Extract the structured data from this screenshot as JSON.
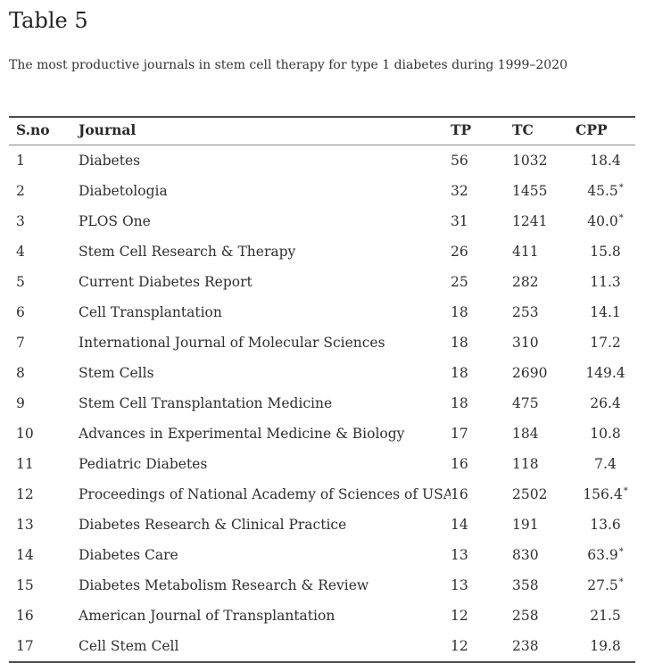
{
  "page": {
    "title": "Table 5",
    "caption": "The most productive journals in stem cell therapy for type 1 diabetes during 1999–2020"
  },
  "colors": {
    "text": "#2f2f2f",
    "rule_dark": "#4a4a4a",
    "rule_light": "#8a8a8a",
    "background": "#ffffff"
  },
  "table": {
    "columns": [
      "S.no",
      "Journal",
      "TP",
      "TC",
      "CPP"
    ],
    "rows": [
      {
        "sno": "1",
        "journal": "Diabetes",
        "tp": "56",
        "tc": "1032",
        "cpp": "18.4",
        "star": false
      },
      {
        "sno": "2",
        "journal": "Diabetologia",
        "tp": "32",
        "tc": "1455",
        "cpp": "45.5",
        "star": true
      },
      {
        "sno": "3",
        "journal": "PLOS One",
        "tp": "31",
        "tc": "1241",
        "cpp": "40.0",
        "star": true
      },
      {
        "sno": "4",
        "journal": "Stem Cell Research & Therapy",
        "tp": "26",
        "tc": "411",
        "cpp": "15.8",
        "star": false
      },
      {
        "sno": "5",
        "journal": "Current Diabetes Report",
        "tp": "25",
        "tc": "282",
        "cpp": "11.3",
        "star": false
      },
      {
        "sno": "6",
        "journal": "Cell Transplantation",
        "tp": "18",
        "tc": "253",
        "cpp": "14.1",
        "star": false
      },
      {
        "sno": "7",
        "journal": "International Journal of Molecular Sciences",
        "tp": "18",
        "tc": "310",
        "cpp": "17.2",
        "star": false
      },
      {
        "sno": "8",
        "journal": "Stem Cells",
        "tp": "18",
        "tc": "2690",
        "cpp": "149.4",
        "star": false
      },
      {
        "sno": "9",
        "journal": "Stem Cell Transplantation Medicine",
        "tp": "18",
        "tc": "475",
        "cpp": "26.4",
        "star": false
      },
      {
        "sno": "10",
        "journal": "Advances in Experimental Medicine & Biology",
        "tp": "17",
        "tc": "184",
        "cpp": "10.8",
        "star": false
      },
      {
        "sno": "11",
        "journal": "Pediatric Diabetes",
        "tp": "16",
        "tc": "118",
        "cpp": "7.4",
        "star": false
      },
      {
        "sno": "12",
        "journal": "Proceedings of National Academy of Sciences of USA",
        "tp": "16",
        "tc": "2502",
        "cpp": "156.4",
        "star": true
      },
      {
        "sno": "13",
        "journal": "Diabetes Research & Clinical Practice",
        "tp": "14",
        "tc": "191",
        "cpp": "13.6",
        "star": false
      },
      {
        "sno": "14",
        "journal": "Diabetes Care",
        "tp": "13",
        "tc": "830",
        "cpp": "63.9",
        "star": true
      },
      {
        "sno": "15",
        "journal": "Diabetes Metabolism Research & Review",
        "tp": "13",
        "tc": "358",
        "cpp": "27.5",
        "star": true
      },
      {
        "sno": "16",
        "journal": "American Journal of Transplantation",
        "tp": "12",
        "tc": "258",
        "cpp": "21.5",
        "star": false
      },
      {
        "sno": "17",
        "journal": "Cell Stem Cell",
        "tp": "12",
        "tc": "238",
        "cpp": "19.8",
        "star": false
      }
    ]
  }
}
